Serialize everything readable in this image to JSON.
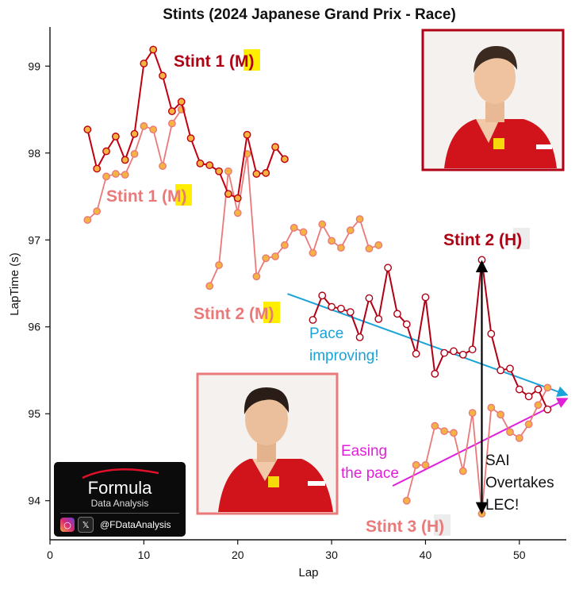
{
  "chart_data": {
    "type": "line",
    "title": "Stints (2024 Japanese Grand Prix - Race)",
    "xlabel": "Lap",
    "ylabel": "LapTime (s)",
    "xlim": [
      0,
      55
    ],
    "ylim": [
      93.55,
      99.45
    ],
    "xticks": [
      0,
      10,
      20,
      30,
      40,
      50
    ],
    "yticks": [
      94,
      95,
      96,
      97,
      98,
      99
    ],
    "grid": false,
    "series": [
      {
        "driver": "LEC",
        "stint": 1,
        "color": "#c0000f",
        "x": [
          4,
          5,
          6,
          7,
          8,
          9,
          10,
          11,
          12,
          13,
          14,
          15,
          16,
          17,
          18,
          19,
          20,
          21,
          22,
          23,
          24,
          25
        ],
        "values": [
          98.27,
          97.82,
          98.02,
          98.19,
          97.92,
          98.22,
          99.03,
          99.19,
          98.89,
          98.48,
          98.59,
          98.17,
          97.88,
          97.86,
          97.79,
          97.53,
          97.48,
          98.21,
          97.76,
          97.77,
          98.07,
          97.93
        ]
      },
      {
        "driver": "SAI",
        "stint": 1,
        "color": "#ea7a7a",
        "x": [
          4,
          5,
          6,
          7,
          8,
          9,
          10,
          11,
          12,
          13,
          14
        ],
        "values": [
          97.23,
          97.33,
          97.73,
          97.76,
          97.75,
          97.99,
          98.31,
          98.27,
          97.85,
          98.34,
          98.5
        ]
      },
      {
        "driver": "SAI",
        "stint": 2,
        "color": "#ea7a7a",
        "x": [
          17,
          18,
          19,
          20,
          21,
          22,
          23,
          24,
          25,
          26,
          27,
          28,
          29,
          30,
          31,
          32,
          33,
          34,
          35
        ],
        "values": [
          96.47,
          96.71,
          97.79,
          97.31,
          97.99,
          96.58,
          96.79,
          96.81,
          96.94,
          97.14,
          97.09,
          96.85,
          97.18,
          96.99,
          96.91,
          97.11,
          97.24,
          96.9,
          96.94
        ]
      },
      {
        "driver": "LEC",
        "stint": 2,
        "color": "#b00014",
        "x": [
          28,
          29,
          30,
          31,
          32,
          33,
          34,
          35,
          36,
          37,
          38,
          39,
          40,
          41,
          42,
          43,
          44,
          45,
          46,
          47,
          48,
          49,
          50,
          51,
          52,
          53
        ],
        "values": [
          96.08,
          96.36,
          96.23,
          96.21,
          96.17,
          95.88,
          96.33,
          96.09,
          96.68,
          96.15,
          96.03,
          95.69,
          96.34,
          95.46,
          95.7,
          95.72,
          95.68,
          95.74,
          96.77,
          95.92,
          95.5,
          95.52,
          95.28,
          95.2,
          95.28,
          95.05
        ]
      },
      {
        "driver": "SAI",
        "stint": 3,
        "color": "#ea7a7a",
        "x": [
          38,
          39,
          40,
          41,
          42,
          43,
          44,
          45,
          46,
          47,
          48,
          49,
          50,
          51,
          52,
          53
        ],
        "values": [
          94.0,
          94.41,
          94.41,
          94.86,
          94.8,
          94.78,
          94.34,
          95.01,
          93.85,
          95.07,
          94.99,
          94.79,
          94.72,
          94.88,
          95.1,
          95.3
        ]
      }
    ],
    "labels": {
      "lec_stint1": {
        "prefix": "Stint 1 (",
        "compound": "M",
        "suffix": ")"
      },
      "sai_stint1": {
        "prefix": "Stint 1 (",
        "compound": "M",
        "suffix": ")"
      },
      "sai_stint2": {
        "prefix": "Stint 2 (",
        "compound": "M",
        "suffix": ")"
      },
      "lec_stint2": {
        "prefix": "Stint 2 (",
        "compound": "H",
        "suffix": ")"
      },
      "sai_stint3": {
        "prefix": "Stint 3 (",
        "compound": "H",
        "suffix": ")"
      }
    },
    "annotations": {
      "pace_improving": [
        "Pace",
        "improving!"
      ],
      "easing": [
        "Easing",
        "the pace"
      ],
      "overtake": [
        "SAI",
        "Overtakes",
        "LEC!"
      ]
    },
    "trend_lines": {
      "pace_improving": {
        "from": [
          25.3,
          96.38
        ],
        "to": [
          55.0,
          95.22
        ],
        "color": "#1aa3d9"
      },
      "easing": {
        "from": [
          36.5,
          94.17
        ],
        "to": [
          55.0,
          95.17
        ],
        "color": "#e020d8"
      }
    },
    "overtake_arrow": {
      "x": 46,
      "y_from": 93.87,
      "y_to": 96.74,
      "color": "#000000"
    }
  },
  "colors": {
    "lec": "#c0000f",
    "sai": "#ea7a7a",
    "marker_fill": "#f5b342",
    "medium_badge": "#ffee00",
    "hard_badge": "#ececec",
    "blue_annot": "#1aa3d9",
    "magenta_annot": "#e020d8"
  },
  "photos": {
    "leclerc": {
      "border_color": "#b00014"
    },
    "sainz": {
      "border_color": "#ea7a7a"
    }
  },
  "logo": {
    "title": "Formula",
    "subtitle": "Data Analysis",
    "handle": "@FDataAnalysis",
    "icons": [
      "instagram-icon",
      "x-icon"
    ]
  }
}
